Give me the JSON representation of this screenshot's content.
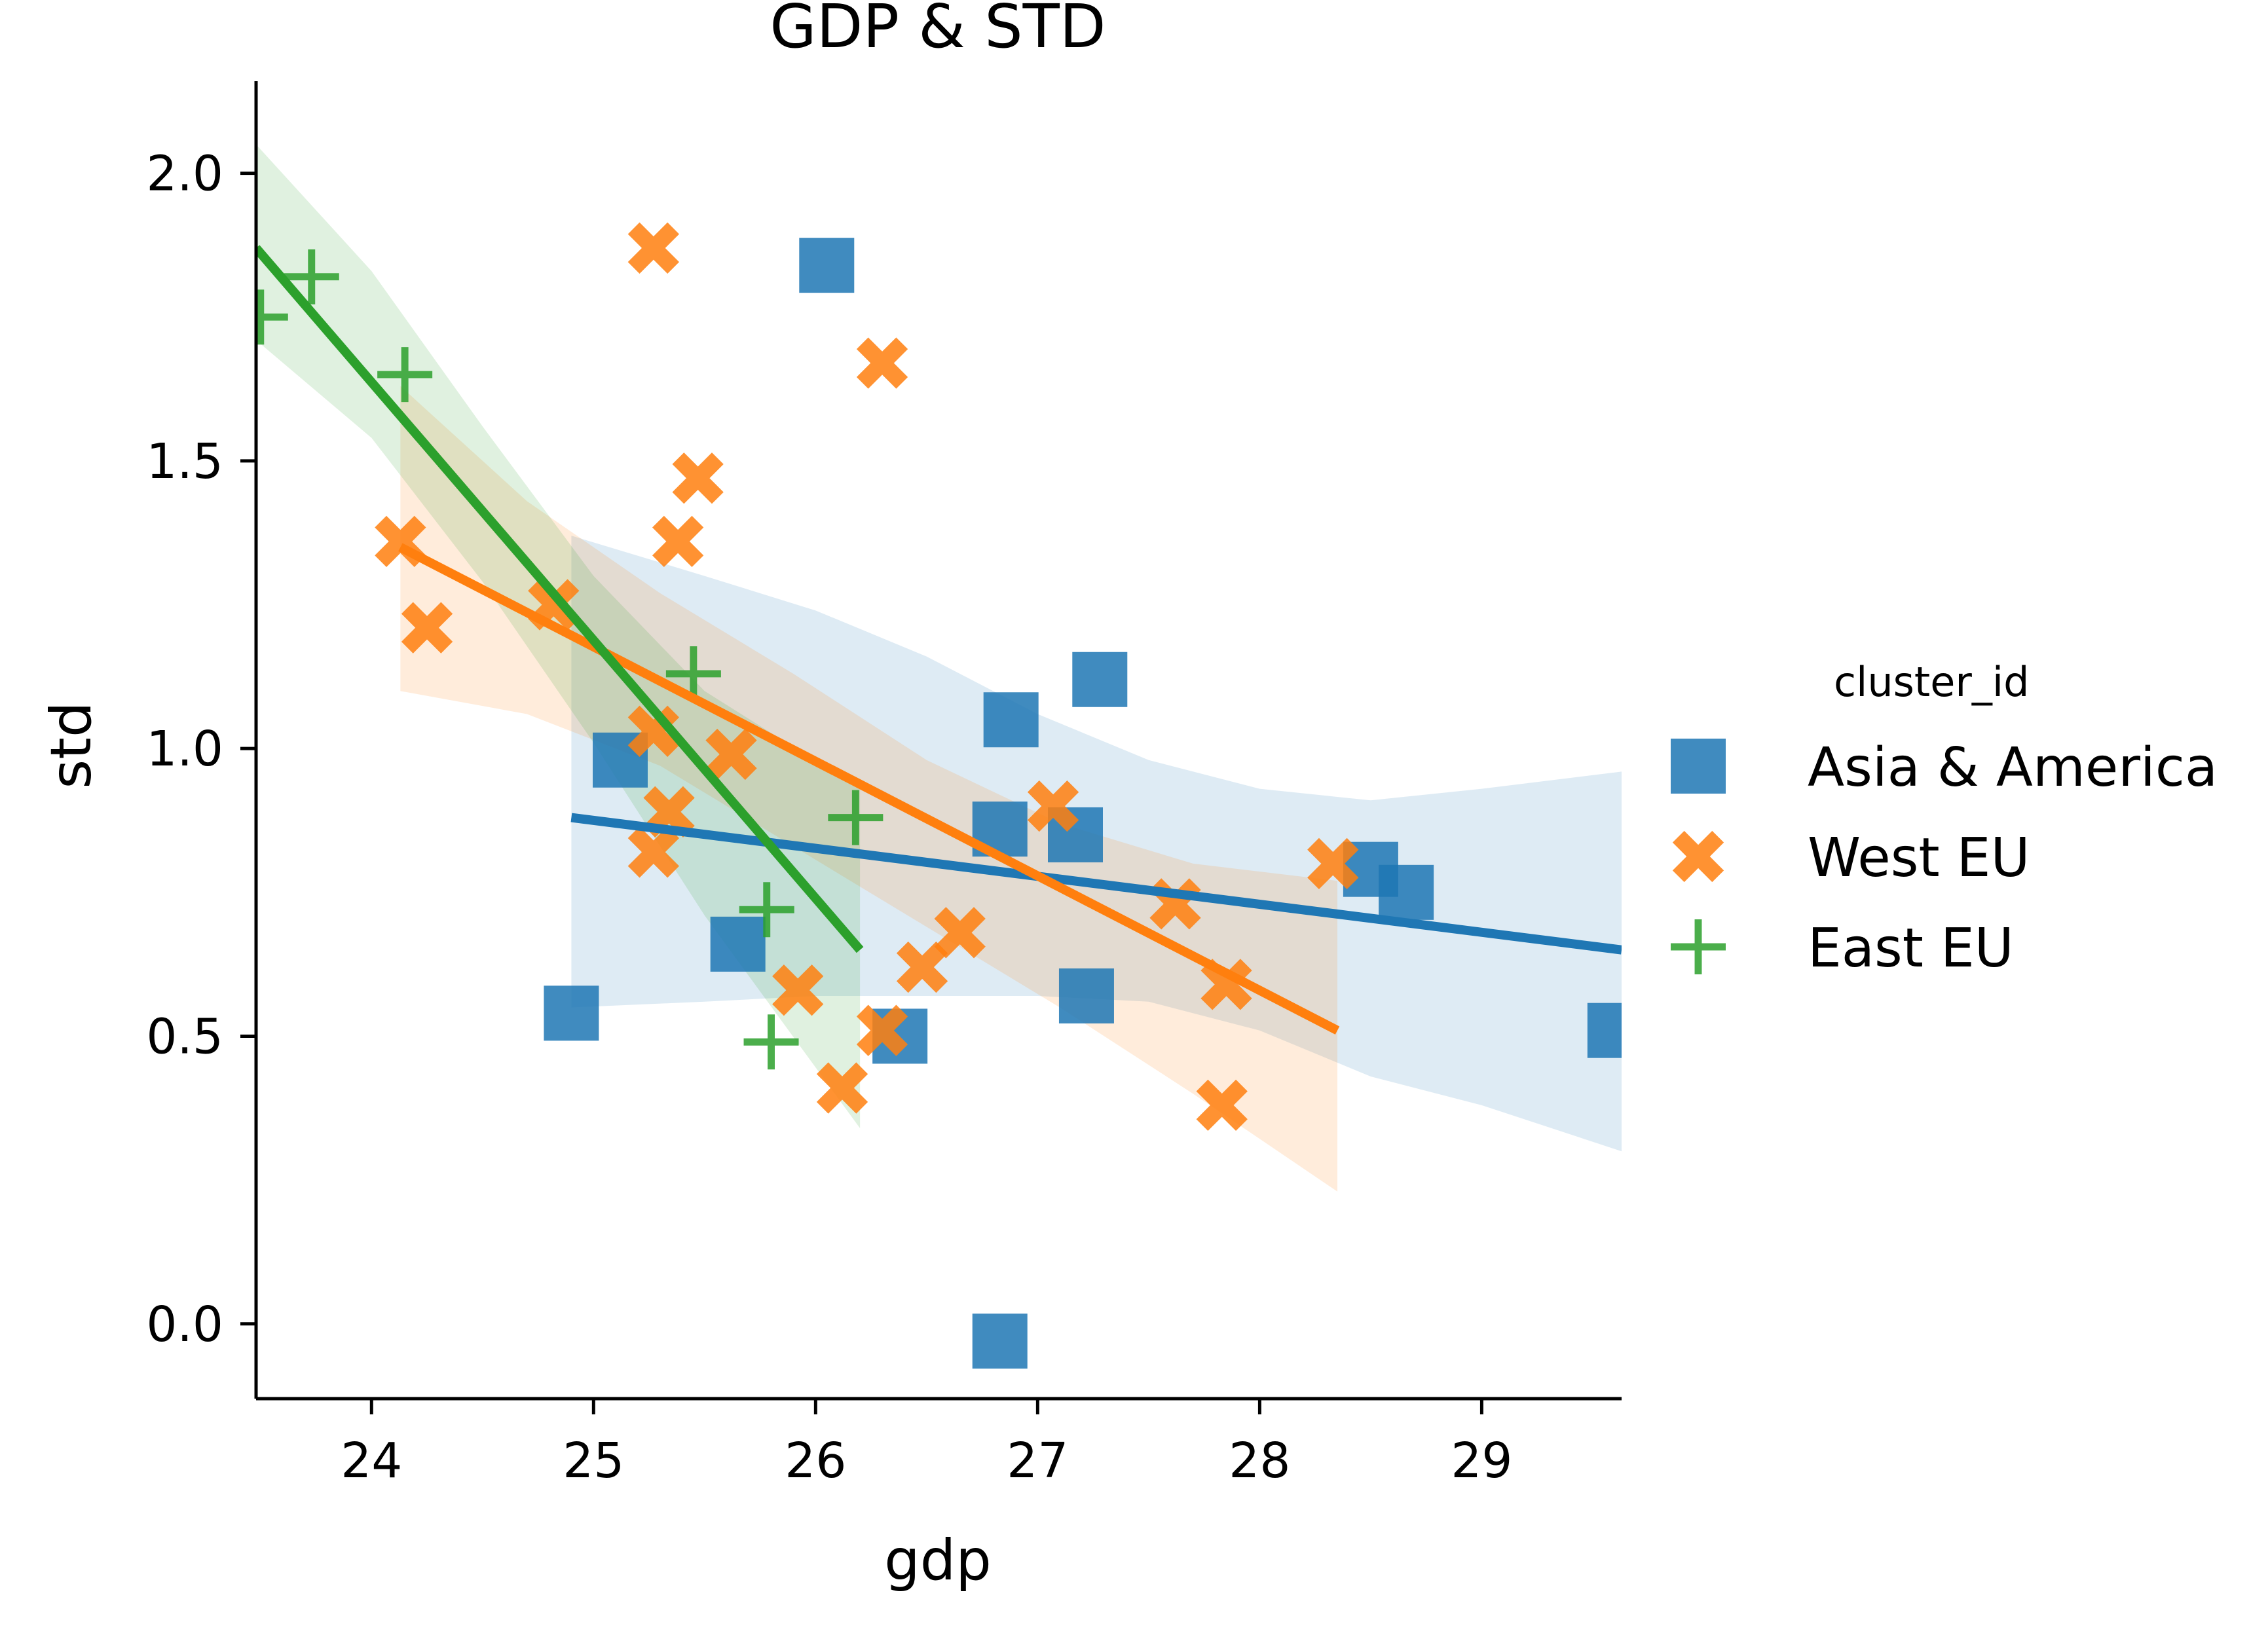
{
  "chart_data": {
    "type": "scatter",
    "title": "GDP & STD",
    "xlabel": "gdp",
    "ylabel": "std",
    "xlim": [
      23.48,
      29.63
    ],
    "ylim": [
      -0.13,
      2.16
    ],
    "xticks": [
      24,
      25,
      26,
      27,
      28,
      29
    ],
    "yticks": [
      0.0,
      0.5,
      1.0,
      1.5,
      2.0
    ],
    "xtick_labels": [
      "24",
      "25",
      "26",
      "27",
      "28",
      "29"
    ],
    "ytick_labels": [
      "0.0",
      "0.5",
      "1.0",
      "1.5",
      "2.0"
    ],
    "grid": false,
    "legend_position": "right",
    "legend_title": "cluster_id",
    "series": [
      {
        "name": "Asia & America",
        "color": "#1f77b4",
        "marker": "square",
        "points": [
          [
            25.12,
            0.98
          ],
          [
            24.9,
            0.54
          ],
          [
            25.65,
            0.66
          ],
          [
            26.05,
            1.84
          ],
          [
            26.38,
            0.5
          ],
          [
            26.83,
            0.86
          ],
          [
            26.88,
            1.05
          ],
          [
            26.83,
            -0.03
          ],
          [
            27.17,
            0.85
          ],
          [
            27.28,
            1.12
          ],
          [
            27.22,
            0.57
          ],
          [
            28.5,
            0.79
          ],
          [
            28.66,
            0.75
          ],
          [
            29.6,
            0.51
          ]
        ],
        "fit_line": [
          [
            24.9,
            0.88
          ],
          [
            29.63,
            0.65
          ]
        ],
        "ci_band": {
          "x": [
            24.9,
            25.5,
            26.0,
            26.5,
            27.0,
            27.5,
            28.0,
            28.5,
            29.0,
            29.63
          ],
          "upper": [
            1.37,
            1.3,
            1.24,
            1.16,
            1.06,
            0.98,
            0.93,
            0.91,
            0.93,
            0.96
          ],
          "lower": [
            0.55,
            0.56,
            0.57,
            0.57,
            0.57,
            0.56,
            0.51,
            0.43,
            0.38,
            0.3
          ]
        }
      },
      {
        "name": "West EU",
        "color": "#ff7f0e",
        "marker": "x",
        "points": [
          [
            24.13,
            1.36
          ],
          [
            24.25,
            1.21
          ],
          [
            24.82,
            1.25
          ],
          [
            25.27,
            0.82
          ],
          [
            25.34,
            0.89
          ],
          [
            25.27,
            1.87
          ],
          [
            25.38,
            1.36
          ],
          [
            25.47,
            1.47
          ],
          [
            25.27,
            1.03
          ],
          [
            25.62,
            0.99
          ],
          [
            25.92,
            0.58
          ],
          [
            26.12,
            0.41
          ],
          [
            26.3,
            1.67
          ],
          [
            26.3,
            0.51
          ],
          [
            26.48,
            0.62
          ],
          [
            26.65,
            0.68
          ],
          [
            27.07,
            0.9
          ],
          [
            27.62,
            0.73
          ],
          [
            27.85,
            0.59
          ],
          [
            27.83,
            0.38
          ],
          [
            28.33,
            0.8
          ]
        ],
        "fit_line": [
          [
            24.13,
            1.35
          ],
          [
            28.35,
            0.51
          ]
        ],
        "ci_band": {
          "x": [
            24.13,
            24.7,
            25.3,
            25.9,
            26.5,
            27.1,
            27.7,
            28.35
          ],
          "upper": [
            1.63,
            1.43,
            1.27,
            1.13,
            0.98,
            0.87,
            0.8,
            0.77
          ],
          "lower": [
            1.1,
            1.06,
            0.97,
            0.83,
            0.69,
            0.55,
            0.4,
            0.23
          ]
        }
      },
      {
        "name": "East EU",
        "color": "#2ca02c",
        "marker": "plus",
        "points": [
          [
            23.5,
            1.75
          ],
          [
            23.73,
            1.82
          ],
          [
            24.15,
            1.65
          ],
          [
            25.45,
            1.13
          ],
          [
            25.78,
            0.72
          ],
          [
            25.8,
            0.49
          ],
          [
            26.18,
            0.88
          ]
        ],
        "fit_line": [
          [
            23.48,
            1.87
          ],
          [
            26.2,
            0.65
          ]
        ],
        "ci_band": {
          "x": [
            23.48,
            24.0,
            24.5,
            25.0,
            25.5,
            26.2
          ],
          "upper": [
            2.05,
            1.83,
            1.56,
            1.3,
            1.1,
            0.93
          ],
          "lower": [
            1.71,
            1.54,
            1.29,
            1.01,
            0.71,
            0.34
          ]
        }
      }
    ]
  }
}
